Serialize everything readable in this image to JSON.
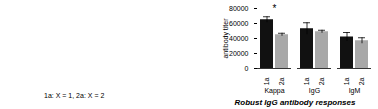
{
  "chart_data": {
    "type": "bar",
    "categories": [
      "Kappa",
      "IgG",
      "IgM"
    ],
    "series": [
      {
        "name": "1a",
        "color": "#111111",
        "values": [
          65000,
          53000,
          42000
        ],
        "errors": [
          4000,
          8000,
          6000
        ]
      },
      {
        "name": "2a",
        "color": "#a8a8a8",
        "values": [
          45000,
          49000,
          37000
        ],
        "errors": [
          2000,
          2000,
          4000
        ]
      }
    ],
    "ylabel": "antibody titer",
    "ylim": [
      0,
      80000
    ],
    "yticks": [
      0,
      20000,
      40000,
      60000,
      80000
    ],
    "annotations": [
      {
        "text": "*",
        "category": "Kappa"
      },
      {
        "text": "1a: X = 1, 2a: X = 2"
      }
    ],
    "caption": "Robust IgG antibody responses"
  }
}
